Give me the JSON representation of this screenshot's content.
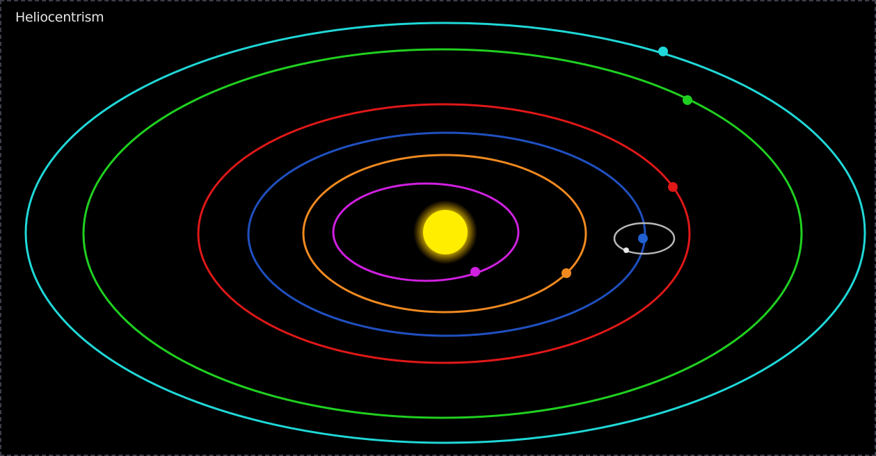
{
  "title": "Heliocentrism",
  "colors": {
    "background": "#000000",
    "sun": "#ffee00",
    "sun_glow": "#ffd000",
    "planets": [
      "#d020e0",
      "#f08a20",
      "#2050c0",
      "#e01818",
      "#20d020",
      "#20d8d8"
    ],
    "moon_orbit": "#b8b8b8",
    "moon": "#e8e8e8"
  },
  "bodies": {
    "sun": "sun",
    "planets": [
      "planet-1",
      "planet-2",
      "planet-3",
      "planet-4",
      "planet-5",
      "planet-6"
    ],
    "moon": "moon"
  }
}
